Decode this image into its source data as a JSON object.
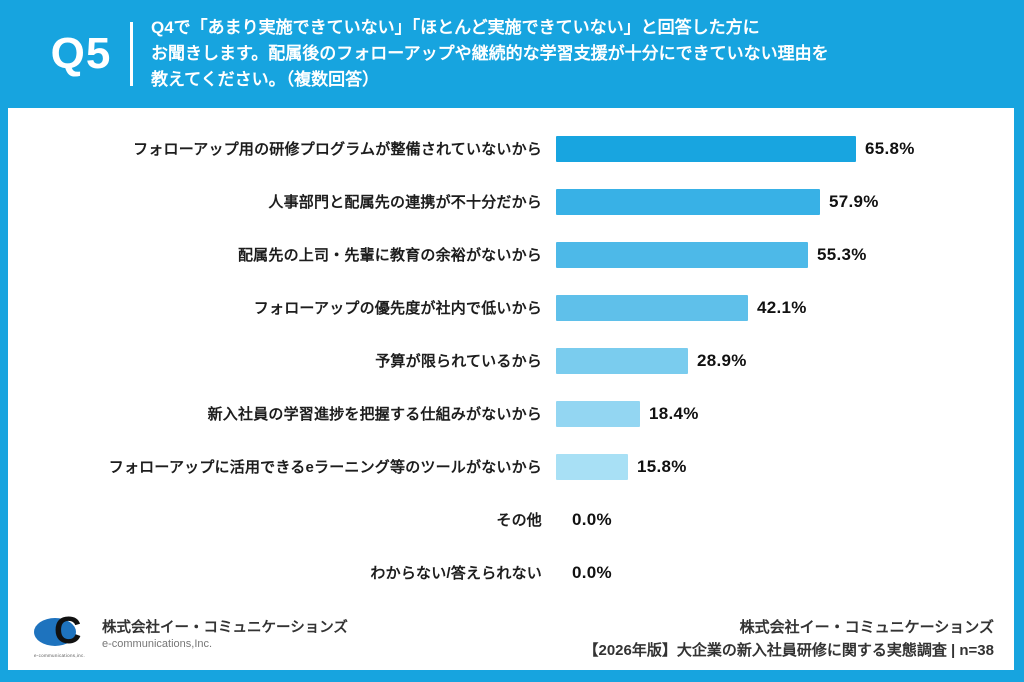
{
  "colors": {
    "accent": "#17A4DF",
    "frame": "#17A4DF",
    "text_dark": "#1d1d1d",
    "logo_blue": "#1E73BE"
  },
  "header": {
    "badge": "Q5",
    "question_lines": [
      "Q4で「あまり実施できていない」「ほとんど実施できていない」と回答した方に",
      "お聞きします。配属後のフォローアップや継続的な学習支援が十分にできていない理由を",
      "教えてください。（複数回答）"
    ]
  },
  "chart_data": {
    "type": "bar",
    "orientation": "horizontal",
    "title": "",
    "xlabel": "",
    "ylabel": "",
    "xlim": [
      0,
      100
    ],
    "grid": false,
    "legend": false,
    "categories": [
      "フォローアップ用の研修プログラムが整備されていないから",
      "人事部門と配属先の連携が不十分だから",
      "配属先の上司・先輩に教育の余裕がないから",
      "フォローアップの優先度が社内で低いから",
      "予算が限られているから",
      "新入社員の学習進捗を把握する仕組みがないから",
      "フォローアップに活用できるeラーニング等のツールがないから",
      "その他",
      "わからない/答えられない"
    ],
    "values": [
      65.8,
      57.9,
      55.3,
      42.1,
      28.9,
      18.4,
      15.8,
      0.0,
      0.0
    ],
    "value_labels": [
      "65.8%",
      "57.9%",
      "55.3%",
      "42.1%",
      "28.9%",
      "18.4%",
      "15.8%",
      "0.0%",
      "0.0%"
    ],
    "bar_colors": [
      "#18A5E0",
      "#38B1E6",
      "#4DB9E8",
      "#5FC0EA",
      "#7ACCEE",
      "#93D6F2",
      "#A8E0F5",
      "transparent",
      "transparent"
    ]
  },
  "footer": {
    "left": {
      "logo_letter": "C",
      "logo_tiny": "e-communications,inc.",
      "company": "株式会社イー・コミュニケーションズ",
      "company_en": "e-communications,Inc."
    },
    "right": {
      "line1": "株式会社イー・コミュニケーションズ",
      "line2": "【2026年版】大企業の新入社員研修に関する実態調査 | n=38"
    }
  }
}
